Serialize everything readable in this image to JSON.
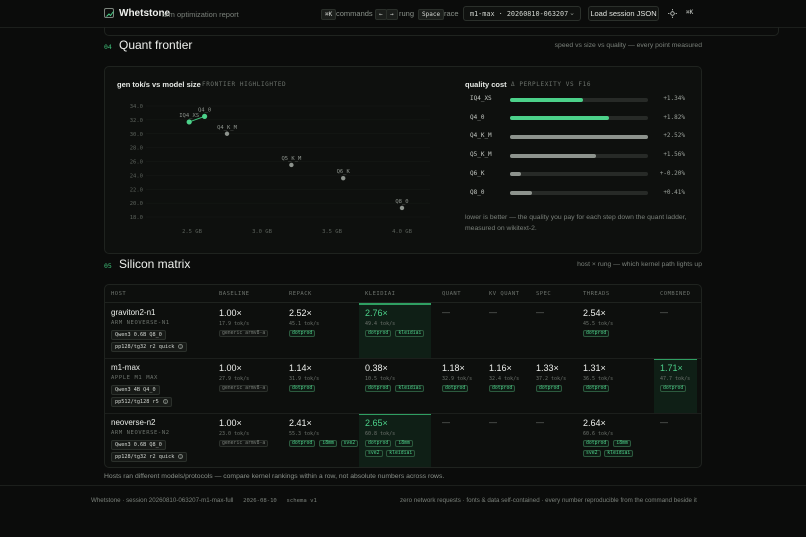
{
  "header": {
    "brand": "Whetstone",
    "subtitle": "arm optimization report",
    "shortcuts": [
      {
        "keys": "⌘K",
        "label": "commands"
      },
      {
        "keys": "←",
        "keys2": "→",
        "label": "rung"
      },
      {
        "keys": "Space",
        "label": "race"
      }
    ],
    "session_value": "m1-max · 20260810-063207",
    "load_button": "Load session JSON",
    "user_kbd": "⌘K"
  },
  "frontier": {
    "number": "04",
    "title": "Quant frontier",
    "note": "speed vs size vs quality — every point measured",
    "scatter_title": "gen tok/s vs model size",
    "scatter_sub": "FRONTIER HIGHLIGHTED",
    "quality_title": "quality cost",
    "quality_sub": "Δ PERPLEXITY VS F16",
    "quality_note": "lower is better — the quality you pay for each step down the quant ladder, measured on wikitext-2."
  },
  "chart_data": [
    {
      "type": "scatter",
      "title": "gen tok/s vs model size",
      "xlabel": "",
      "ylabel": "",
      "x_ticks": [
        "2.5 GB",
        "3.0 GB",
        "3.5 GB",
        "4.0 GB"
      ],
      "y_ticks": [
        "34.0",
        "32.0",
        "30.0",
        "28.0",
        "26.0",
        "24.0",
        "22.0",
        "20.0",
        "18.0"
      ],
      "xlim": [
        2.2,
        4.2
      ],
      "ylim": [
        18,
        34
      ],
      "points": [
        {
          "label": "IQ4_XS",
          "x": 2.48,
          "y": 31.7,
          "frontier": true
        },
        {
          "label": "Q4_0",
          "x": 2.59,
          "y": 32.5,
          "frontier": true
        },
        {
          "label": "Q4_K_M",
          "x": 2.75,
          "y": 30.0,
          "frontier": false
        },
        {
          "label": "Q5_K_M",
          "x": 3.21,
          "y": 25.5,
          "frontier": false
        },
        {
          "label": "Q6_K",
          "x": 3.58,
          "y": 23.6,
          "frontier": false
        },
        {
          "label": "Q8_0",
          "x": 4.0,
          "y": 19.3,
          "frontier": false
        }
      ]
    },
    {
      "type": "bar",
      "title": "quality cost",
      "categories": [
        "IQ4_XS",
        "Q4_0",
        "Q4_K_M",
        "Q5_K_M",
        "Q6_K",
        "Q8_0"
      ],
      "values": [
        1.34,
        1.82,
        2.52,
        1.56,
        -0.2,
        0.41
      ],
      "labels": [
        "+1.34%",
        "+1.82%",
        "+2.52%",
        "+1.56%",
        "+-0.20%",
        "+0.41%"
      ],
      "highlight": [
        true,
        true,
        false,
        false,
        false,
        false
      ],
      "fill_fraction": [
        0.53,
        0.72,
        1.0,
        0.62,
        0.08,
        0.16
      ]
    }
  ],
  "silicon": {
    "number": "05",
    "title": "Silicon matrix",
    "note": "host × rung — which kernel path lights up",
    "headers": [
      "HOST",
      "BASELINE",
      "REPACK",
      "KLEIDIAI",
      "QUANT",
      "KV QUANT",
      "SPEC",
      "THREADS",
      "COMBINED"
    ],
    "rows": [
      {
        "host": "graviton2-n1",
        "arch": "ARM NEOVERSE-N1",
        "model": "Qwen3 0.6B Q8_0",
        "bench": "pp128/tg32 r2 quick",
        "cells": [
          {
            "val": "1.00×",
            "sub": "17.9 tok/s",
            "tags": [
              "generic armv8-a"
            ],
            "gray": true
          },
          {
            "val": "2.52×",
            "sub": "45.1 tok/s",
            "tags": [
              "dotprod"
            ]
          },
          {
            "val": "2.76×",
            "sub": "49.4 tok/s",
            "tags": [
              "dotprod",
              "kleidiai"
            ],
            "win": true
          },
          {
            "val": "—"
          },
          {
            "val": "—"
          },
          {
            "val": "—"
          },
          {
            "val": "2.54×",
            "sub": "45.5 tok/s",
            "tags": [
              "dotprod"
            ]
          },
          {
            "val": "—"
          }
        ]
      },
      {
        "host": "m1-max",
        "arch": "APPLE M1 MAX",
        "model": "Qwen3 4B Q4_0",
        "bench": "pp512/tg128 r5",
        "cells": [
          {
            "val": "1.00×",
            "sub": "27.9 tok/s",
            "tags": [
              "generic armv8-a"
            ],
            "gray": true
          },
          {
            "val": "1.14×",
            "sub": "31.9 tok/s",
            "tags": [
              "dotprod"
            ]
          },
          {
            "val": "0.38×",
            "sub": "10.5 tok/s",
            "tags": [
              "dotprod",
              "kleidiai"
            ]
          },
          {
            "val": "1.18×",
            "sub": "32.9 tok/s",
            "tags": [
              "dotprod"
            ]
          },
          {
            "val": "1.16×",
            "sub": "32.4 tok/s",
            "tags": [
              "dotprod"
            ]
          },
          {
            "val": "1.33×",
            "sub": "37.2 tok/s",
            "tags": [
              "dotprod"
            ]
          },
          {
            "val": "1.31×",
            "sub": "36.5 tok/s",
            "tags": [
              "dotprod"
            ]
          },
          {
            "val": "1.71×",
            "sub": "47.7 tok/s",
            "tags": [
              "dotprod"
            ],
            "win": true
          }
        ]
      },
      {
        "host": "neoverse-n2",
        "arch": "ARM NEOVERSE-N2",
        "model": "Qwen3 0.6B Q8_0",
        "bench": "pp128/tg32 r2 quick",
        "cells": [
          {
            "val": "1.00×",
            "sub": "23.0 tok/s",
            "tags": [
              "generic armv8-a"
            ],
            "gray": true
          },
          {
            "val": "2.41×",
            "sub": "55.3 tok/s",
            "tags": [
              "dotprod",
              "i8mm",
              "sve2"
            ]
          },
          {
            "val": "2.65×",
            "sub": "60.8 tok/s",
            "tags": [
              "dotprod",
              "i8mm",
              "sve2",
              "kleidiai"
            ],
            "win": true
          },
          {
            "val": "—"
          },
          {
            "val": "—"
          },
          {
            "val": "—"
          },
          {
            "val": "2.64×",
            "sub": "60.6 tok/s",
            "tags": [
              "dotprod",
              "i8mm",
              "sve2",
              "kleidiai"
            ]
          },
          {
            "val": "—"
          }
        ]
      }
    ],
    "footnote": "Hosts ran different models/protocols — compare kernel rankings within a row, not absolute numbers across rows."
  },
  "footer": {
    "left_brand": "Whetstone · session 20260810-063207-m1-max-full",
    "date": "2026-08-10",
    "schema": "schema v1",
    "right": "zero network requests · fonts & data self-contained · every number reproducible from the command beside it"
  },
  "colors": {
    "accent": "#3fbf78",
    "background": "#0b0c0b",
    "card": "#0e100e"
  }
}
